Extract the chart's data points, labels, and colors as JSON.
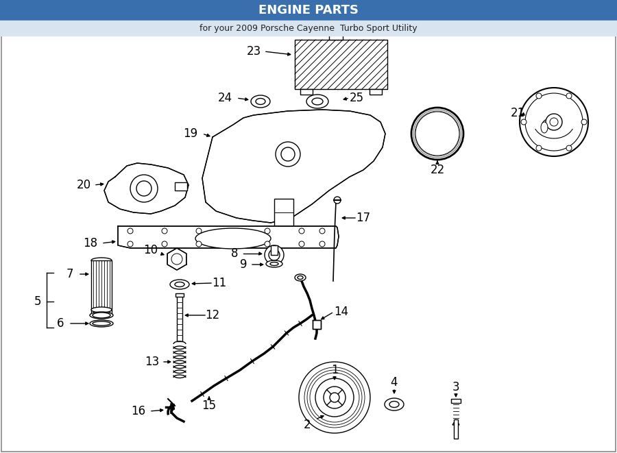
{
  "bg_color": "#ffffff",
  "line_color": "#000000",
  "fig_width": 9.0,
  "fig_height": 6.61,
  "dpi": 100,
  "title": "ENGINE PARTS",
  "subtitle": "for your 2009 Porsche Cayenne  Turbo Sport Utility",
  "title_bg": "#3a6fad",
  "subtitle_bg": "#d8e4f0",
  "border_color": "#888888"
}
